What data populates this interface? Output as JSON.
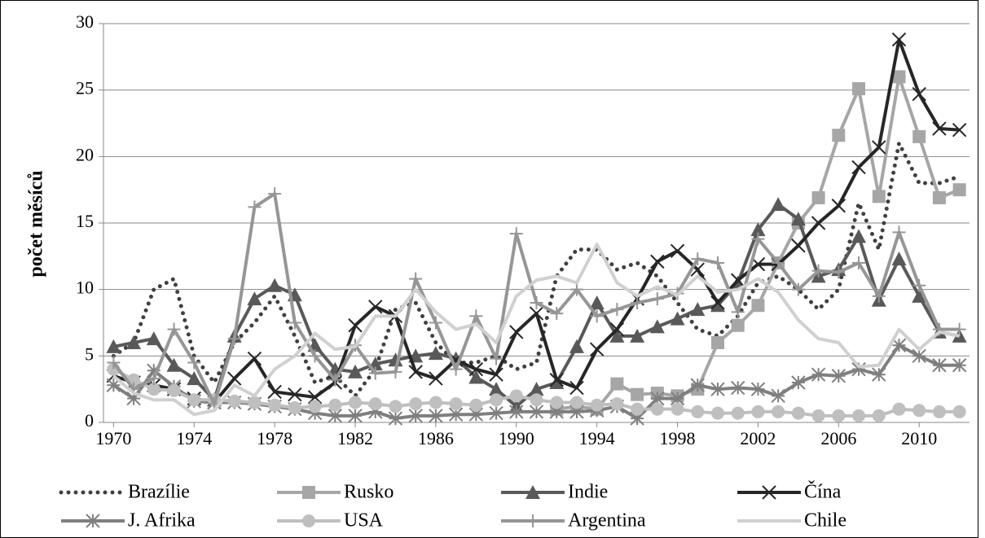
{
  "chart_data": {
    "type": "line",
    "y_label": "počet měsíců",
    "x": [
      1970,
      1971,
      1972,
      1973,
      1974,
      1975,
      1976,
      1977,
      1978,
      1979,
      1980,
      1981,
      1982,
      1983,
      1984,
      1985,
      1986,
      1987,
      1988,
      1989,
      1990,
      1991,
      1992,
      1993,
      1994,
      1995,
      1996,
      1997,
      1998,
      1999,
      2000,
      2001,
      2002,
      2003,
      2004,
      2005,
      2006,
      2007,
      2008,
      2009,
      2010,
      2011,
      2012
    ],
    "xlim": [
      1969.5,
      2012.5
    ],
    "xticks": [
      1970,
      1974,
      1978,
      1982,
      1986,
      1990,
      1994,
      1998,
      2002,
      2006,
      2010
    ],
    "ylim": [
      0,
      30
    ],
    "yticks": [
      0,
      5,
      10,
      15,
      20,
      25,
      30
    ],
    "grid": true,
    "legend": "bottom",
    "series": [
      {
        "name": "Brazílie",
        "color": "#404040",
        "marker": "none",
        "dash": true,
        "values": [
          5,
          6,
          10,
          10.8,
          5,
          3,
          6,
          7.5,
          9.5,
          6.5,
          3,
          3.5,
          2,
          4,
          8.5,
          9,
          6,
          4.5,
          4.5,
          5,
          4,
          4.5,
          11,
          13,
          13,
          11.5,
          12,
          11,
          9,
          7,
          6.5,
          8,
          10.5,
          11,
          10,
          8.5,
          10,
          16.5,
          13,
          21,
          18,
          18,
          18.5
        ]
      },
      {
        "name": "Rusko",
        "color": "#a6a6a6",
        "marker": "square",
        "dash": false,
        "values": [
          null,
          null,
          null,
          null,
          null,
          null,
          null,
          null,
          null,
          null,
          null,
          null,
          null,
          null,
          null,
          null,
          null,
          null,
          null,
          null,
          null,
          null,
          1,
          1.2,
          1,
          2.9,
          2.1,
          2.2,
          2,
          2.5,
          6,
          7.3,
          8.8,
          12,
          15,
          16.9,
          21.6,
          25.1,
          17,
          26,
          21.5,
          16.9,
          17.5
        ]
      },
      {
        "name": "Indie",
        "color": "#595959",
        "marker": "triangle",
        "dash": false,
        "values": [
          5.7,
          6,
          6.3,
          4.3,
          3.3,
          1.7,
          6.5,
          9.3,
          10.3,
          9.6,
          5.8,
          4,
          3.8,
          4.4,
          4.7,
          5,
          5.2,
          4.8,
          3.4,
          2.5,
          1.2,
          2.5,
          3,
          5.7,
          9,
          6.5,
          6.5,
          7.2,
          7.8,
          8.5,
          8.8,
          10.5,
          14.5,
          16.4,
          15.3,
          11,
          11.5,
          14,
          9.2,
          12.3,
          9.5,
          6.8,
          6.5
        ]
      },
      {
        "name": "Čína",
        "color": "#262626",
        "marker": "x",
        "dash": false,
        "values": [
          3.5,
          3,
          2.8,
          2.5,
          1.8,
          1.5,
          3.3,
          4.8,
          2.3,
          2.1,
          1.9,
          3,
          7.3,
          8.7,
          8,
          3.8,
          3.3,
          4.7,
          4,
          3.6,
          6.8,
          8.2,
          3.2,
          2.6,
          5.5,
          7,
          9.3,
          12.1,
          12.9,
          11.5,
          9,
          10.7,
          11.9,
          11.9,
          13.3,
          15,
          16.3,
          19.2,
          20.7,
          28.8,
          24.7,
          22.1,
          22
        ]
      },
      {
        "name": "J. Afrika",
        "color": "#7f7f7f",
        "marker": "star",
        "dash": false,
        "values": [
          2.8,
          1.8,
          3.9,
          2.7,
          1.6,
          1.5,
          1.5,
          1.4,
          1.2,
          1,
          0.7,
          0.5,
          0.5,
          0.8,
          0.3,
          0.5,
          0.5,
          0.6,
          0.6,
          0.7,
          0.8,
          0.8,
          0.8,
          0.8,
          0.9,
          1.2,
          0.3,
          1.8,
          1.8,
          2.8,
          2.5,
          2.6,
          2.5,
          2,
          3,
          3.6,
          3.5,
          4,
          3.6,
          5.8,
          5,
          4.3,
          4.3
        ]
      },
      {
        "name": "USA",
        "color": "#bfbfbf",
        "marker": "circle",
        "dash": false,
        "values": [
          4,
          3.2,
          2.5,
          2.4,
          1.7,
          1.7,
          1.6,
          1.5,
          1.3,
          1.1,
          1.2,
          1.3,
          1.5,
          1.4,
          1.2,
          1.4,
          1.5,
          1.4,
          1.3,
          1.7,
          2,
          1.7,
          1.5,
          1.5,
          1.3,
          1.4,
          1,
          1,
          1,
          0.8,
          0.7,
          0.7,
          0.8,
          0.8,
          0.7,
          0.5,
          0.5,
          0.5,
          0.5,
          1,
          0.9,
          0.8,
          0.8
        ]
      },
      {
        "name": "Argentina",
        "color": "#969696",
        "marker": "plus",
        "dash": false,
        "values": [
          4.5,
          2.5,
          3.3,
          7,
          4.5,
          1.4,
          6.3,
          16.2,
          17.2,
          7.5,
          5,
          3.2,
          5.8,
          3.7,
          3.8,
          10.8,
          7.5,
          4,
          8,
          4.8,
          14.2,
          9,
          8.2,
          10,
          8,
          8.5,
          9,
          9.3,
          9.7,
          12.3,
          12,
          8.3,
          13.8,
          12,
          10,
          11.4,
          11.3,
          12,
          9.5,
          14.3,
          10.3,
          7,
          7
        ]
      },
      {
        "name": "Chile",
        "color": "#d0d0d0",
        "marker": "none",
        "dash": false,
        "values": [
          3.5,
          2.2,
          1.7,
          1.7,
          0.6,
          0.9,
          2.8,
          2,
          4,
          5,
          6.7,
          5.5,
          5.7,
          8,
          8,
          10,
          8.3,
          7,
          7.4,
          6,
          9.5,
          10.7,
          11,
          10.5,
          13.4,
          10.5,
          9.5,
          10.2,
          9.6,
          11,
          9.8,
          10,
          10.8,
          9.8,
          7.7,
          6.3,
          6,
          4.2,
          4.3,
          7,
          5.5,
          6.8,
          6.5
        ]
      }
    ]
  }
}
